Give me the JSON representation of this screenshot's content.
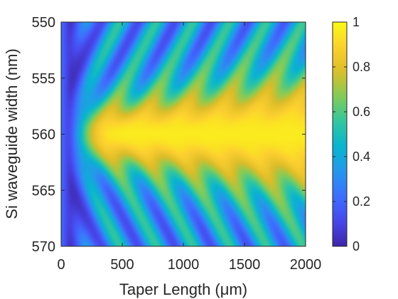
{
  "chart_data": {
    "type": "heatmap",
    "title": "",
    "xlabel": "Taper Length (μm)",
    "ylabel": "Si waveguide width (nm)",
    "xlim": [
      0,
      2000
    ],
    "ylim": [
      550,
      570
    ],
    "y_direction": "reversed (550 at top, 570 at bottom)",
    "x_ticks": [
      "0",
      "500",
      "1000",
      "1500",
      "2000"
    ],
    "y_ticks": [
      "550",
      "555",
      "560",
      "565",
      "570"
    ],
    "colorbar": {
      "colormap": "parula",
      "clim": [
        0,
        1
      ],
      "ticks": [
        "0",
        "0.2",
        "0.4",
        "0.6",
        "0.8",
        "1"
      ],
      "placement": "right"
    },
    "grid": false,
    "description_of_values": "Transmission/coupling efficiency ranging 0 to 1; low (~0.05) near x=0, rising to ~0.95 around width 560 nm for lengths above ~500 μm, with oscillating fringes that widen the high region toward larger lengths and fall to ~0.1-0.4 near widths 550 and 570 nm.",
    "sample_values": {
      "x": [
        0,
        250,
        500,
        1000,
        1500,
        2000
      ],
      "y": [
        550,
        555,
        560,
        565,
        570
      ],
      "z": [
        [
          0.2,
          0.05,
          0.25,
          0.4,
          0.55,
          0.7
        ],
        [
          0.2,
          0.35,
          0.6,
          0.75,
          0.8,
          0.85
        ],
        [
          0.2,
          0.85,
          0.92,
          0.95,
          0.96,
          0.95
        ],
        [
          0.2,
          0.35,
          0.6,
          0.75,
          0.8,
          0.85
        ],
        [
          0.2,
          0.05,
          0.25,
          0.4,
          0.55,
          0.7
        ]
      ]
    }
  }
}
